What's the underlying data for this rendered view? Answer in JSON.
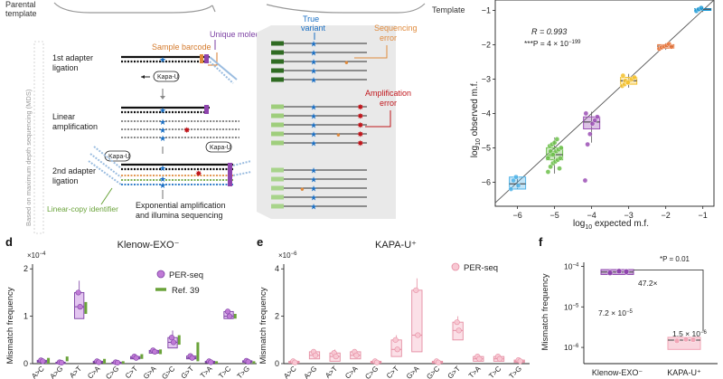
{
  "figure": {
    "top_labels": {
      "parental_template": [
        "Parental",
        "template"
      ],
      "template": "Template"
    },
    "panel_letters": {
      "d": "d",
      "e": "e",
      "f": "f"
    }
  },
  "workflow": {
    "side_label": "Based on maximum depth sequencing (MDS)",
    "steps": [
      "1st adapter\nligation",
      "Linear\namplification",
      "2nd adapter\nligation"
    ],
    "annotations": {
      "umi": "Unique molecular identifier",
      "barcode": "Sample barcode",
      "true_variant": [
        "True",
        "variant"
      ],
      "seq_error": [
        "Sequencing",
        "error"
      ],
      "amp_error": [
        "Amplification",
        "error"
      ],
      "kapa_u": "Kapa-U",
      "linear_copy": "Linear-copy identifier",
      "final": [
        "Exponential amplification",
        "and illumina sequencing"
      ]
    }
  },
  "colors": {
    "purple": "#8e44ad",
    "orange": "#e08a3c",
    "blue": "#1a6fc4",
    "red": "#c0161c",
    "green": "#6aa33a",
    "lightgreen": "#9fce7c",
    "darkgreen": "#2f6b22",
    "grey_panel": "#e9e9e9",
    "pink": "#f2a5b6"
  },
  "chart_data": [
    {
      "id": "scatter",
      "type": "scatter",
      "xlabel": "log10 expected m.f.",
      "ylabel": "log10 observed m.f.",
      "xlim": [
        -6.6,
        -0.7
      ],
      "ylim": [
        -6.7,
        -0.7
      ],
      "xticks": [
        -6,
        -5,
        -4,
        -3,
        -2,
        -1
      ],
      "yticks": [
        -6,
        -5,
        -4,
        -3,
        -2,
        -1
      ],
      "stats": {
        "r": "R = 0.993",
        "p": "***P = 4 × 10",
        "p_exp": "−199"
      },
      "groups": [
        {
          "x": -6,
          "color": "#4fb3e8",
          "q1": -6.2,
          "median": -6.05,
          "q3": -5.85,
          "wlo": -6.2,
          "whi": -5.8,
          "points": [
            -6.2,
            -5.95,
            -5.85,
            -6.1
          ]
        },
        {
          "x": -5,
          "color": "#6cc04a",
          "q1": -5.35,
          "median": -5.2,
          "q3": -5.0,
          "wlo": -5.75,
          "whi": -4.7,
          "points": [
            -5.7,
            -5.55,
            -5.45,
            -5.4,
            -5.35,
            -5.3,
            -5.25,
            -5.2,
            -5.15,
            -5.1,
            -5.05,
            -5.0,
            -4.95,
            -4.9,
            -4.85,
            -4.75,
            -5.6,
            -5.3,
            -5.1,
            -5.2
          ]
        },
        {
          "x": -4,
          "color": "#9b4fb5",
          "q1": -4.45,
          "median": -4.25,
          "q3": -4.1,
          "wlo": -4.85,
          "whi": -3.95,
          "points": [
            -5.95,
            -4.9,
            -4.6,
            -4.3,
            -4.2,
            -4.1,
            -4.0
          ]
        },
        {
          "x": -3,
          "color": "#f3c02a",
          "q1": -3.15,
          "median": -3.05,
          "q3": -2.95,
          "wlo": -3.25,
          "whi": -2.85,
          "points": [
            -3.2,
            -3.15,
            -3.1,
            -3.05,
            -3.0,
            -2.95,
            -2.9,
            -3.05,
            -3.1
          ]
        },
        {
          "x": -2,
          "color": "#e8743a",
          "q1": -2.1,
          "median": -2.05,
          "q3": -2.0,
          "wlo": -2.15,
          "whi": -1.95,
          "points": [
            -2.12,
            -2.08,
            -2.05,
            -2.02,
            -1.98,
            -2.06
          ]
        },
        {
          "x": -1,
          "color": "#1f9bd7",
          "q1": -1.0,
          "median": -0.97,
          "q3": -0.95,
          "wlo": -1.05,
          "whi": -0.9,
          "points": [
            -1.02,
            -0.97,
            -0.93
          ]
        }
      ]
    },
    {
      "id": "klenow",
      "type": "bar",
      "title": "Klenow-EXO⁻",
      "ylabel": "Mismatch frequency",
      "ylim": [
        0,
        2.1
      ],
      "yticks": [
        0,
        1,
        2
      ],
      "y_scale_label": "×10",
      "y_scale_exp": "−4",
      "legend": [
        "PER-seq",
        "Ref. 39"
      ],
      "categories": [
        "A>C",
        "A>G",
        "A>T",
        "C>A",
        "C>G",
        "C>T",
        "G>A",
        "G>C",
        "G>T",
        "T>A",
        "T>C",
        "T>G"
      ],
      "values": [
        0.05,
        0.02,
        1.2,
        0.03,
        0.02,
        0.12,
        0.25,
        0.45,
        0.12,
        0.03,
        1.0,
        0.04
      ],
      "q1": [
        0.03,
        0.01,
        0.95,
        0.02,
        0.01,
        0.1,
        0.22,
        0.33,
        0.1,
        0.02,
        0.95,
        0.03
      ],
      "q3": [
        0.07,
        0.03,
        1.5,
        0.05,
        0.03,
        0.15,
        0.28,
        0.55,
        0.16,
        0.05,
        1.1,
        0.06
      ],
      "whi": [
        0.08,
        0.04,
        1.75,
        0.06,
        0.04,
        0.18,
        0.3,
        0.7,
        0.2,
        0.06,
        1.15,
        0.07
      ],
      "ref39": [
        0.12,
        0.15,
        1.3,
        0.1,
        0.05,
        0.2,
        0.3,
        0.6,
        0.45,
        0.05,
        1.05,
        0.05
      ],
      "ref39_lo": [
        0.0,
        0.05,
        1.05,
        0.0,
        0.0,
        0.1,
        0.2,
        0.4,
        0.05,
        0.0,
        0.95,
        0.0
      ]
    },
    {
      "id": "kapa",
      "type": "bar",
      "title": "KAPA-U⁺",
      "ylabel": "Mismatch frequency",
      "ylim": [
        0,
        4.2
      ],
      "yticks": [
        0,
        2,
        4
      ],
      "y_scale_label": "×10",
      "y_scale_exp": "−6",
      "legend": [
        "PER-seq"
      ],
      "categories": [
        "A>C",
        "A>G",
        "A>T",
        "C>A",
        "C>G",
        "C>T",
        "G>A",
        "G>C",
        "G>T",
        "T>A",
        "T>C",
        "T>G"
      ],
      "values": [
        0.05,
        0.35,
        0.3,
        0.35,
        0.05,
        0.6,
        1.2,
        0.05,
        1.4,
        0.2,
        0.2,
        0.1
      ],
      "q1": [
        0.02,
        0.2,
        0.1,
        0.2,
        0.02,
        0.3,
        0.5,
        0.02,
        1.0,
        0.1,
        0.1,
        0.05
      ],
      "q3": [
        0.1,
        0.5,
        0.45,
        0.5,
        0.1,
        1.0,
        3.1,
        0.1,
        1.75,
        0.3,
        0.3,
        0.15
      ],
      "whi": [
        0.15,
        0.6,
        0.6,
        0.6,
        0.15,
        1.2,
        3.6,
        0.15,
        2.0,
        0.4,
        0.4,
        0.2
      ]
    },
    {
      "id": "f",
      "type": "bar",
      "ylabel": "Mismatch frequency",
      "scale": "log",
      "ylim_log10": [
        -6.4,
        -3.9
      ],
      "yticks_log10": [
        -6,
        -5,
        -4
      ],
      "categories": [
        "Klenow-EXO⁻",
        "KAPA-U⁺"
      ],
      "values_log10": [
        -4.14,
        -5.82
      ],
      "q1_log10": [
        -4.2,
        -6.05
      ],
      "q3_log10": [
        -4.08,
        -5.75
      ],
      "colors": [
        "#8e44ad",
        "#f2a5b6"
      ],
      "annotations": {
        "klenow_value": "7.2 × 10",
        "klenow_exp": "−5",
        "kapa_value": "1.5 × 10",
        "kapa_exp": "−6",
        "fold": "47.2×",
        "p": "*P = 0.01"
      }
    }
  ]
}
